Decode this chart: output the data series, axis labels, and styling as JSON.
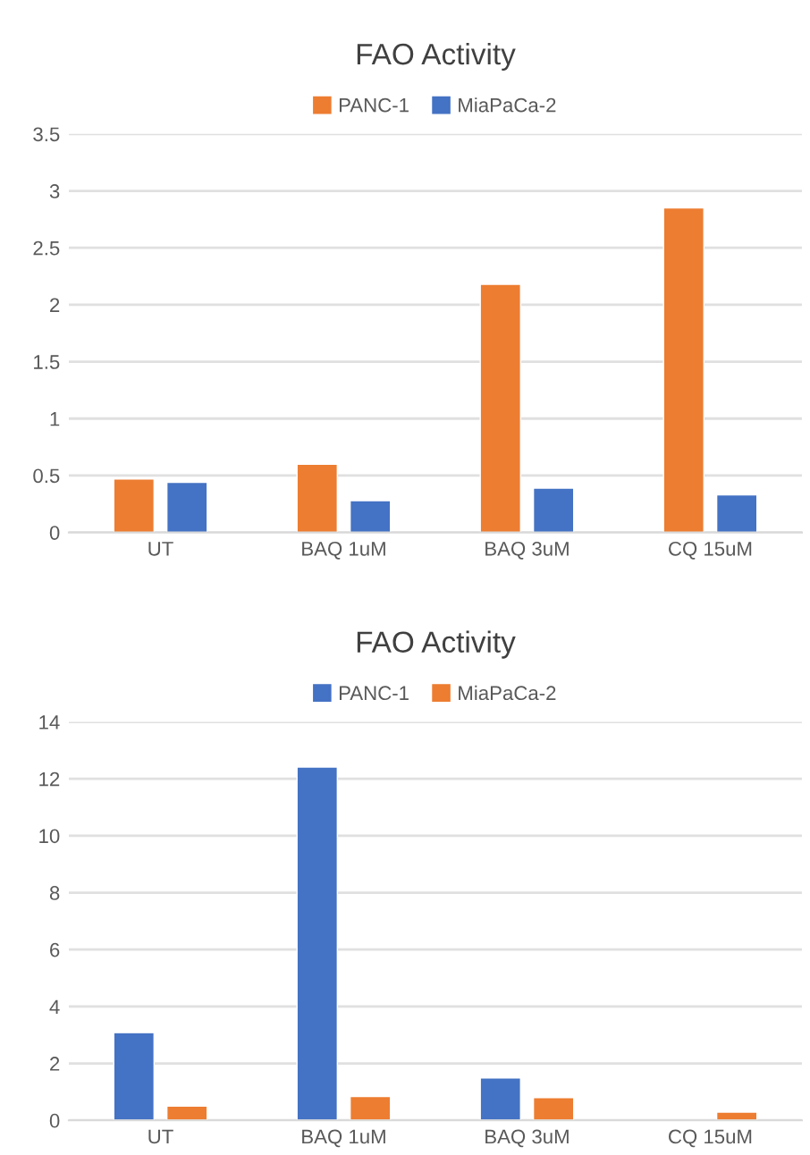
{
  "chart_data": [
    {
      "type": "bar",
      "title": "FAO Activity",
      "categories": [
        "UT",
        "BAQ 1uM",
        "BAQ 3uM",
        "CQ 15uM"
      ],
      "series": [
        {
          "name": "PANC-1",
          "color": "#ed7d31",
          "values": [
            0.47,
            0.6,
            2.18,
            2.85
          ]
        },
        {
          "name": "MiaPaCa-2",
          "color": "#4472c4",
          "values": [
            0.44,
            0.28,
            0.39,
            0.33
          ]
        }
      ],
      "ylim": [
        0,
        3.5
      ],
      "yticks": [
        0,
        0.5,
        1,
        1.5,
        2,
        2.5,
        3,
        3.5
      ],
      "grid": "y",
      "legend": "top"
    },
    {
      "type": "bar",
      "title": "FAO Activity",
      "categories": [
        "UT",
        "BAQ 1uM",
        "BAQ 3uM",
        "CQ 15uM"
      ],
      "series": [
        {
          "name": "PANC-1",
          "color": "#4472c4",
          "values": [
            3.08,
            12.41,
            1.49,
            null
          ]
        },
        {
          "name": "MiaPaCa-2",
          "color": "#ed7d31",
          "values": [
            0.5,
            0.84,
            0.8,
            0.29
          ]
        }
      ],
      "ylim": [
        0,
        14
      ],
      "yticks": [
        0,
        2,
        4,
        6,
        8,
        10,
        12,
        14
      ],
      "grid": "y",
      "legend": "top"
    }
  ]
}
